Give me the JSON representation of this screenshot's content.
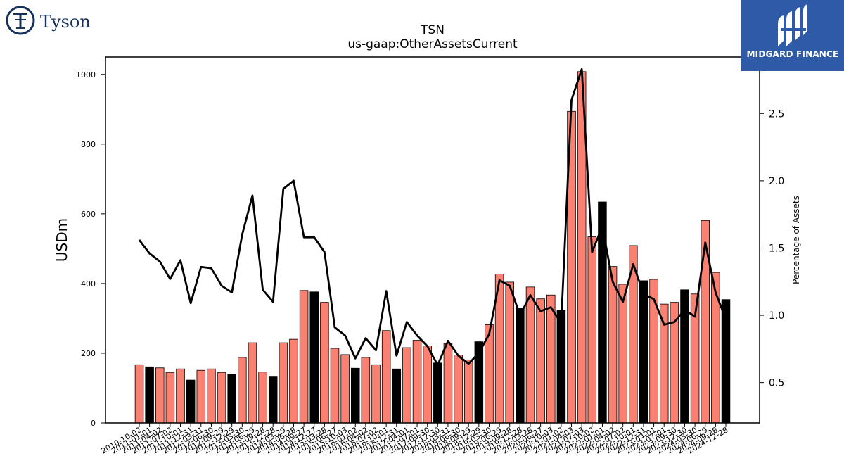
{
  "logos": {
    "left": {
      "text": "Tyson",
      "icon": "tyson-logo-icon",
      "color": "#16325c"
    },
    "right": {
      "text": "MIDGARD FINANCE",
      "icon": "midgard-logo-icon",
      "background": "#2e5aa8"
    }
  },
  "chart_data": {
    "type": "bar",
    "title": "TSN",
    "subtitle": "us-gaap:OtherAssetsCurrent",
    "ylabel": "USDm",
    "y2label": "Percentage of Assets",
    "ylim": [
      0,
      1050
    ],
    "y2lim": [
      0.2,
      2.92
    ],
    "yticks": [
      "0",
      "200",
      "400",
      "600",
      "800",
      "1000"
    ],
    "y2ticks": [
      "0.5",
      "1.0",
      "1.5",
      "2.0",
      "2.5"
    ],
    "bar_colors": {
      "normal": "#fa8072",
      "fiscal_year_end": "#000000"
    },
    "line_color": "#000000",
    "categories": [
      "2010-10-02",
      "2011-01-01",
      "2011-04-02",
      "2011-07-02",
      "2011-10-01",
      "2011-12-31",
      "2012-03-31",
      "2012-06-30",
      "2012-09-29",
      "2012-12-29",
      "2013-03-30",
      "2013-06-29",
      "2013-09-28",
      "2013-12-28",
      "2014-03-29",
      "2014-06-28",
      "2014-09-27",
      "2014-12-27",
      "2015-03-28",
      "2015-06-27",
      "2015-10-03",
      "2016-01-02",
      "2016-04-02",
      "2016-07-02",
      "2016-10-01",
      "2016-12-31",
      "2017-04-01",
      "2017-07-01",
      "2017-09-30",
      "2017-12-30",
      "2018-03-31",
      "2018-06-30",
      "2018-09-29",
      "2018-12-29",
      "2019-03-30",
      "2019-06-29",
      "2019-09-28",
      "2019-12-28",
      "2020-03-28",
      "2020-06-27",
      "2020-10-03",
      "2021-01-02",
      "2021-04-03",
      "2021-07-03",
      "2021-10-02",
      "2022-01-01",
      "2022-04-02",
      "2022-07-02",
      "2022-10-01",
      "2022-12-31",
      "2023-04-01",
      "2023-07-01",
      "2023-09-30",
      "2023-12-30",
      "2024-03-30",
      "2024-06-29",
      "2024-09-28",
      "2024-12-28"
    ],
    "tick_labels": [
      "2010-10-02",
      "2011-01-01",
      "2011-04-02",
      "2011-07-02",
      "2011-10-01",
      "2011-12-31",
      "2012-03-31",
      "2012-06-30",
      "2012-09-29",
      "2012-12-29",
      "2013-03-30",
      "2013-06-29",
      "2013-09-28",
      "2013-12-28",
      "2014-03-29",
      "2014-06-28",
      "2014-09-27",
      "2014-12-27",
      "2015-03-28",
      "2015-06-27",
      "2015-10-03",
      "2016-01-02",
      "2016-04-02",
      "2016-07-02",
      "2016-10-01",
      "2016-12-31",
      "2017-04-01",
      "2017-07-01",
      "2017-09-30",
      "2017-12-30",
      "2018-03-31",
      "2018-06-30",
      "2018-09-29",
      "2018-12-29",
      "2019-03-30",
      "2019-06-29",
      "2019-09-28",
      "2019-12-28",
      "2020-03-28",
      "2020-06-27",
      "2020-10-03",
      "2021-01-02",
      "2021-04-03",
      "2021-07-03",
      "2021-10-02",
      "2022-01-01",
      "2022-04-02",
      "2022-07-02",
      "2022-10-01",
      "2022-12-31",
      "2023-04-01",
      "2023-07-01",
      "2023-09-30",
      "2023-12-30",
      "2024-03-30",
      "2024-06-29",
      "2024-09-28",
      "2024-12-28"
    ],
    "values": [
      167,
      161,
      158,
      145,
      155,
      123,
      151,
      155,
      145,
      139,
      188,
      230,
      146,
      132,
      230,
      240,
      380,
      376,
      346,
      214,
      196,
      157,
      188,
      167,
      265,
      155,
      216,
      237,
      221,
      172,
      228,
      195,
      181,
      233,
      282,
      427,
      404,
      329,
      390,
      356,
      367,
      323,
      894,
      1008,
      534,
      634,
      449,
      398,
      509,
      408,
      412,
      341,
      346,
      382,
      370,
      581,
      432,
      354
    ],
    "fiscal_year_end": [
      false,
      true,
      false,
      false,
      false,
      true,
      false,
      false,
      false,
      true,
      false,
      false,
      false,
      true,
      false,
      false,
      false,
      true,
      false,
      false,
      false,
      true,
      false,
      false,
      false,
      true,
      false,
      false,
      false,
      true,
      false,
      false,
      false,
      true,
      false,
      false,
      false,
      true,
      false,
      false,
      false,
      true,
      false,
      false,
      false,
      true,
      false,
      false,
      false,
      true,
      false,
      false,
      false,
      true,
      false,
      false,
      false,
      true
    ],
    "pct_assets": [
      1.56,
      1.46,
      1.4,
      1.27,
      1.41,
      1.09,
      1.36,
      1.35,
      1.22,
      1.17,
      1.6,
      1.89,
      1.19,
      1.1,
      1.94,
      2.0,
      1.58,
      1.58,
      1.47,
      0.91,
      0.85,
      0.68,
      0.83,
      0.74,
      1.18,
      0.7,
      0.95,
      0.85,
      0.77,
      0.63,
      0.81,
      0.7,
      0.64,
      0.72,
      0.86,
      1.26,
      1.22,
      1.0,
      1.15,
      1.03,
      1.06,
      0.94,
      2.6,
      2.83,
      1.47,
      1.66,
      1.25,
      1.1,
      1.38,
      1.16,
      1.12,
      0.93,
      0.95,
      1.04,
      0.99,
      1.54,
      1.17,
      0.97
    ]
  }
}
